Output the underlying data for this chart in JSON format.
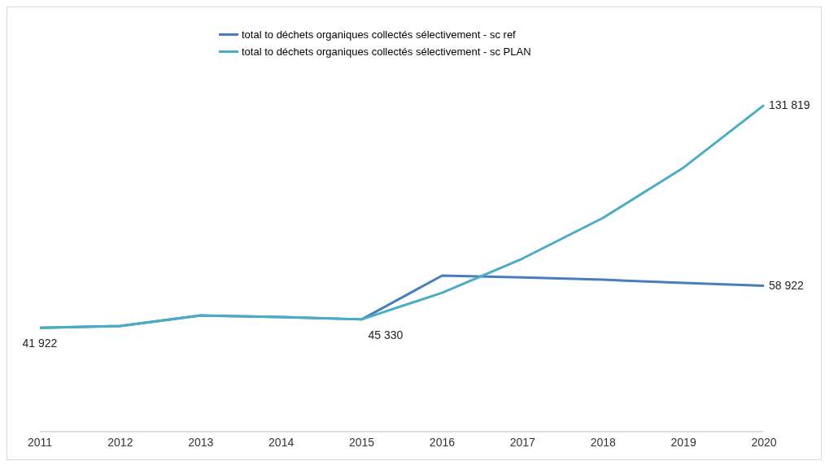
{
  "chart_data": {
    "type": "line",
    "categories": [
      "2011",
      "2012",
      "2013",
      "2014",
      "2015",
      "2016",
      "2017",
      "2018",
      "2019",
      "2020"
    ],
    "series": [
      {
        "name": "total to déchets organiques collectés sélectivement - sc ref",
        "color": "#4a7ebb",
        "values": [
          41922,
          42650,
          46900,
          46260,
          45330,
          63000,
          62300,
          61350,
          60040,
          58922
        ],
        "value_labels": [
          "41 922",
          null,
          null,
          null,
          "45 330",
          null,
          null,
          null,
          null,
          "58 922"
        ]
      },
      {
        "name": "total to déchets organiques collectés sélectivement - sc PLAN",
        "color": "#4bacc6",
        "values": [
          41922,
          42650,
          46900,
          46260,
          45330,
          56100,
          69900,
          86300,
          106600,
          131819
        ],
        "value_labels": [
          null,
          null,
          null,
          null,
          null,
          null,
          null,
          null,
          null,
          "131 819"
        ]
      }
    ],
    "tick_labels": "x",
    "legend": "top",
    "grid": false,
    "marker": "none",
    "line_style": "solid"
  }
}
